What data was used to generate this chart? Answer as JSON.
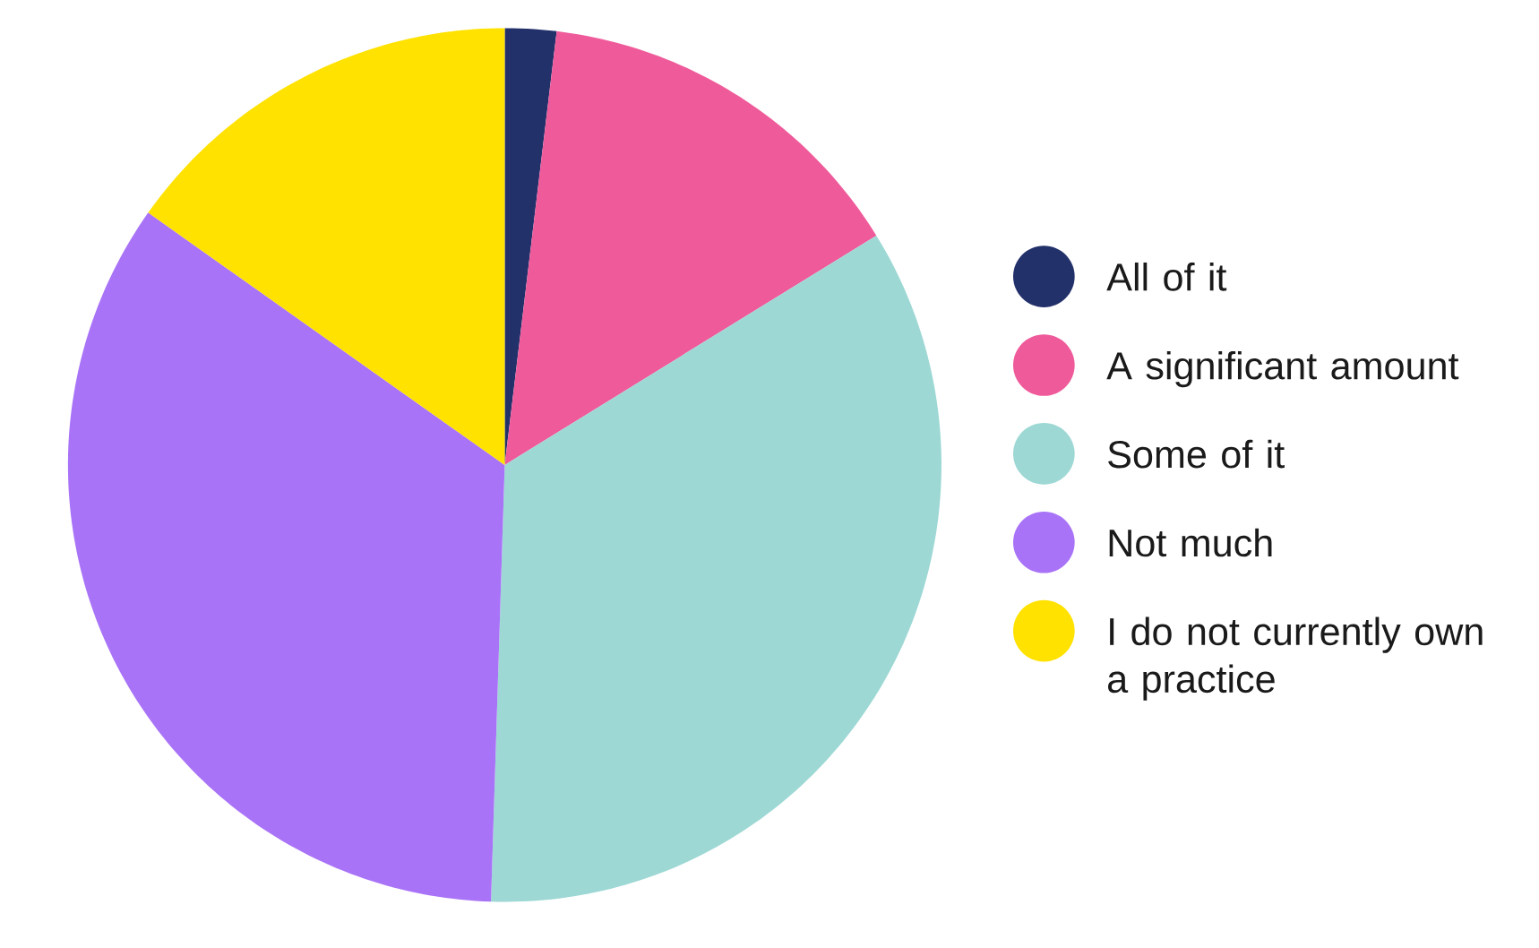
{
  "chart_data": {
    "type": "pie",
    "categories": [
      "All of it",
      "A significant amount",
      "Some of it",
      "Not much",
      "I do not currently own a practice"
    ],
    "values": [
      1.9,
      14.3,
      34.3,
      34.3,
      15.2
    ],
    "colors": [
      "#23316b",
      "#ef5a9a",
      "#9dd8d5",
      "#a973f8",
      "#ffe200"
    ],
    "legend": "right"
  }
}
